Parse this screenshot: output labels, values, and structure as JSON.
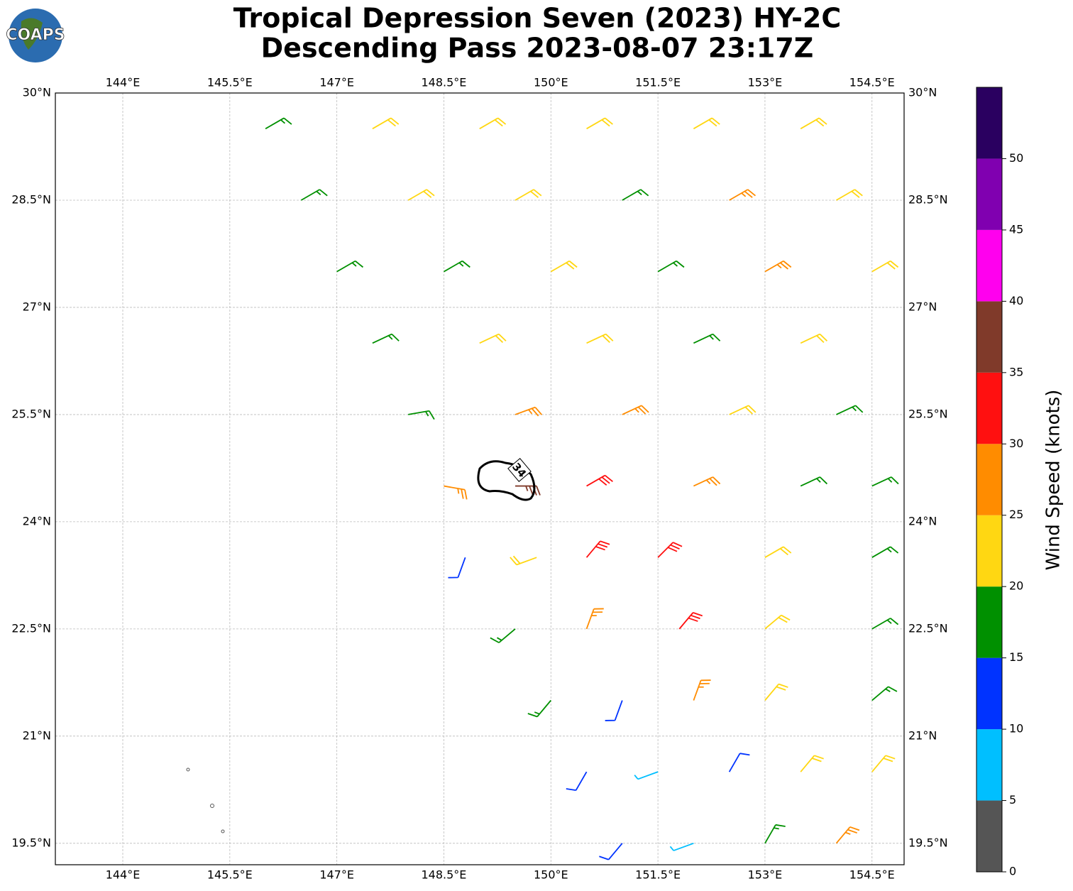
{
  "chart_data": {
    "type": "barbs",
    "logo": "COAPS",
    "title": "Tropical Depression Seven (2023) HY-2C",
    "subtitle": "Descending Pass 2023-08-07 23:17Z",
    "xlim": [
      143.055,
      154.95
    ],
    "ylim": [
      19.2,
      30
    ],
    "xticks": [
      {
        "value": 144,
        "label": "144°E"
      },
      {
        "value": 145.5,
        "label": "145.5°E"
      },
      {
        "value": 147,
        "label": "147°E"
      },
      {
        "value": 148.5,
        "label": "148.5°E"
      },
      {
        "value": 150,
        "label": "150°E"
      },
      {
        "value": 151.5,
        "label": "151.5°E"
      },
      {
        "value": 153,
        "label": "153°E"
      },
      {
        "value": 154.5,
        "label": "154.5°E"
      }
    ],
    "yticks": [
      {
        "value": 19.5,
        "label": "19.5°N"
      },
      {
        "value": 21,
        "label": "21°N"
      },
      {
        "value": 22.5,
        "label": "22.5°N"
      },
      {
        "value": 24,
        "label": "24°N"
      },
      {
        "value": 25.5,
        "label": "25.5°N"
      },
      {
        "value": 27,
        "label": "27°N"
      },
      {
        "value": 28.5,
        "label": "28.5°N"
      },
      {
        "value": 30,
        "label": "30°N"
      }
    ],
    "grid": true,
    "contour_level": 34,
    "colorbar": {
      "label": "Wind Speed (knots)",
      "bounds": [
        0,
        5,
        10,
        15,
        20,
        25,
        30,
        35,
        40,
        45,
        50,
        55
      ],
      "colors": [
        "#555555",
        "#00bfff",
        "#0033ff",
        "#009000",
        "#ffd712",
        "#ff8c00",
        "#ff1010",
        "#803a2a",
        "#ff00ee",
        "#8000b0",
        "#2a0060"
      ],
      "ticks": [
        0,
        5,
        10,
        15,
        20,
        25,
        30,
        35,
        40,
        45,
        50
      ]
    },
    "barbs": {
      "lon": [
        146,
        147.5,
        149,
        150.5,
        152,
        153.5,
        146.5,
        148,
        149.5,
        151,
        152.5,
        154,
        147,
        148.5,
        150,
        151.5,
        153,
        154.5,
        147.5,
        149,
        150.5,
        152,
        153.5,
        148,
        149.5,
        151,
        152.5,
        154,
        148.5,
        149.5,
        150.5,
        152,
        153.5,
        154.5,
        148.8,
        149.8,
        150.5,
        151.5,
        153,
        154.5,
        149.5,
        150.5,
        151.8,
        153,
        154.5,
        150,
        151,
        152,
        153,
        154.5,
        150.5,
        151.5,
        152.5,
        153.5,
        154.5,
        151,
        152,
        153,
        154
      ],
      "lat": [
        29.5,
        29.5,
        29.5,
        29.5,
        29.5,
        29.5,
        28.5,
        28.5,
        28.5,
        28.5,
        28.5,
        28.5,
        27.5,
        27.5,
        27.5,
        27.5,
        27.5,
        27.5,
        26.5,
        26.5,
        26.5,
        26.5,
        26.5,
        25.5,
        25.5,
        25.5,
        25.5,
        25.5,
        24.5,
        24.5,
        24.5,
        24.5,
        24.5,
        24.5,
        23.5,
        23.5,
        23.5,
        23.5,
        23.5,
        23.5,
        22.5,
        22.5,
        22.5,
        22.5,
        22.5,
        21.5,
        21.5,
        21.5,
        21.5,
        21.5,
        20.5,
        20.5,
        20.5,
        20.5,
        20.5,
        19.5,
        19.5,
        19.5,
        19.5
      ],
      "speed": [
        17,
        22,
        22,
        22,
        22,
        22,
        17,
        22,
        22,
        17,
        27,
        22,
        17,
        17,
        22,
        17,
        27,
        22,
        17,
        22,
        22,
        17,
        22,
        17,
        27,
        27,
        22,
        17,
        27,
        37,
        32,
        27,
        17,
        17,
        12,
        22,
        32,
        32,
        22,
        17,
        17,
        27,
        32,
        22,
        17,
        17,
        12,
        27,
        22,
        17,
        12,
        7,
        12,
        22,
        22,
        12,
        7,
        17,
        27
      ],
      "dir": [
        60,
        60,
        60,
        60,
        60,
        60,
        60,
        60,
        60,
        60,
        60,
        60,
        60,
        60,
        60,
        60,
        60,
        60,
        65,
        65,
        65,
        65,
        65,
        80,
        70,
        65,
        65,
        65,
        100,
        90,
        60,
        65,
        65,
        65,
        200,
        250,
        40,
        45,
        60,
        60,
        230,
        20,
        40,
        50,
        60,
        220,
        200,
        20,
        40,
        50,
        210,
        250,
        30,
        40,
        40,
        220,
        250,
        30,
        40
      ]
    }
  }
}
